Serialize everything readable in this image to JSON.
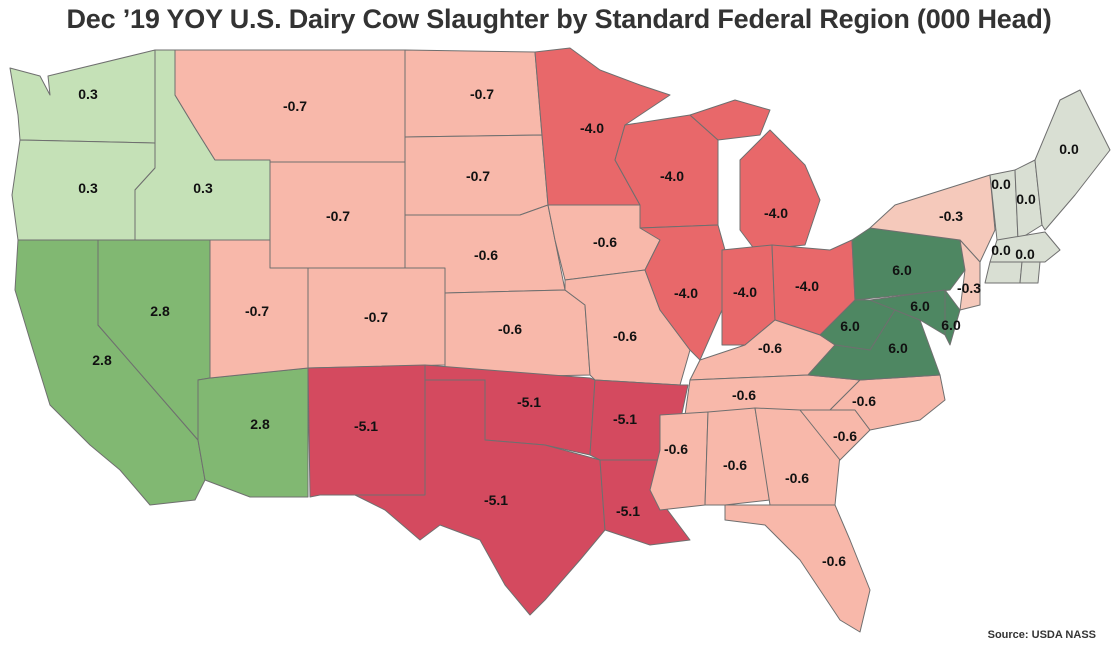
{
  "title": "Dec ’19 YOY U.S. Dairy Cow Slaughter by Standard Federal Region (000 Head)",
  "source": "Source: USDA NASS",
  "colors": {
    "dark_red": "#d44a5f",
    "red": "#e8686a",
    "light_red": "#f8b8aa",
    "pale_red": "#f5c9bb",
    "light_green": "#c5e1b7",
    "green": "#81b872",
    "dark_green": "#4e8762",
    "gray_green": "#d9dfd3",
    "border": "#6f6f6f"
  },
  "states": {
    "WA": {
      "value": "0.3",
      "color": "#c5e1b7"
    },
    "OR": {
      "value": "0.3",
      "color": "#c5e1b7"
    },
    "ID": {
      "value": "0.3",
      "color": "#c5e1b7"
    },
    "CA": {
      "value": "2.8",
      "color": "#81b872"
    },
    "NV": {
      "value": "2.8",
      "color": "#81b872"
    },
    "AZ": {
      "value": "2.8",
      "color": "#81b872"
    },
    "MT": {
      "value": "-0.7",
      "color": "#f8b8aa"
    },
    "WY": {
      "value": "-0.7",
      "color": "#f8b8aa"
    },
    "UT": {
      "value": "-0.7",
      "color": "#f8b8aa"
    },
    "CO": {
      "value": "-0.7",
      "color": "#f8b8aa"
    },
    "ND": {
      "value": "-0.7",
      "color": "#f8b8aa"
    },
    "SD": {
      "value": "-0.7",
      "color": "#f8b8aa"
    },
    "NE": {
      "value": "-0.6",
      "color": "#f8b8aa"
    },
    "KS": {
      "value": "-0.6",
      "color": "#f8b8aa"
    },
    "IA": {
      "value": "-0.6",
      "color": "#f8b8aa"
    },
    "MO": {
      "value": "-0.6",
      "color": "#f8b8aa"
    },
    "MN": {
      "value": "-4.0",
      "color": "#e8686a"
    },
    "WI": {
      "value": "-4.0",
      "color": "#e8686a"
    },
    "MI": {
      "value": "-4.0",
      "color": "#e8686a"
    },
    "IL": {
      "value": "-4.0",
      "color": "#e8686a"
    },
    "IN": {
      "value": "-4.0",
      "color": "#e8686a"
    },
    "OH": {
      "value": "-4.0",
      "color": "#e8686a"
    },
    "NM": {
      "value": "-5.1",
      "color": "#d44a5f"
    },
    "TX": {
      "value": "-5.1",
      "color": "#d44a5f"
    },
    "OK": {
      "value": "-5.1",
      "color": "#d44a5f"
    },
    "AR": {
      "value": "-5.1",
      "color": "#d44a5f"
    },
    "LA": {
      "value": "-5.1",
      "color": "#d44a5f"
    },
    "KY": {
      "value": "-0.6",
      "color": "#f8b8aa"
    },
    "TN": {
      "value": "-0.6",
      "color": "#f8b8aa"
    },
    "MS": {
      "value": "-0.6",
      "color": "#f8b8aa"
    },
    "AL": {
      "value": "-0.6",
      "color": "#f8b8aa"
    },
    "GA": {
      "value": "-0.6",
      "color": "#f8b8aa"
    },
    "FL": {
      "value": "-0.6",
      "color": "#f8b8aa"
    },
    "SC": {
      "value": "-0.6",
      "color": "#f8b8aa"
    },
    "NC": {
      "value": "-0.6",
      "color": "#f8b8aa"
    },
    "PA": {
      "value": "6.0",
      "color": "#4e8762"
    },
    "WV": {
      "value": "6.0",
      "color": "#4e8762"
    },
    "VA": {
      "value": "6.0",
      "color": "#4e8762"
    },
    "MD": {
      "value": "6.0",
      "color": "#4e8762"
    },
    "DE": {
      "value": "6.0",
      "color": "#4e8762"
    },
    "NY": {
      "value": "-0.3",
      "color": "#f5c9bb"
    },
    "NJ": {
      "value": "-0.3",
      "color": "#f5c9bb"
    },
    "VT": {
      "value": "0.0",
      "color": "#d9dfd3"
    },
    "NH": {
      "value": "0.0",
      "color": "#d9dfd3"
    },
    "ME": {
      "value": "0.0",
      "color": "#d9dfd3"
    },
    "MA": {
      "value": "0.0",
      "color": "#d9dfd3"
    },
    "CT": {
      "value": "0.0",
      "color": "#d9dfd3"
    },
    "RI": {
      "value": "0.0",
      "color": "#d9dfd3"
    }
  }
}
